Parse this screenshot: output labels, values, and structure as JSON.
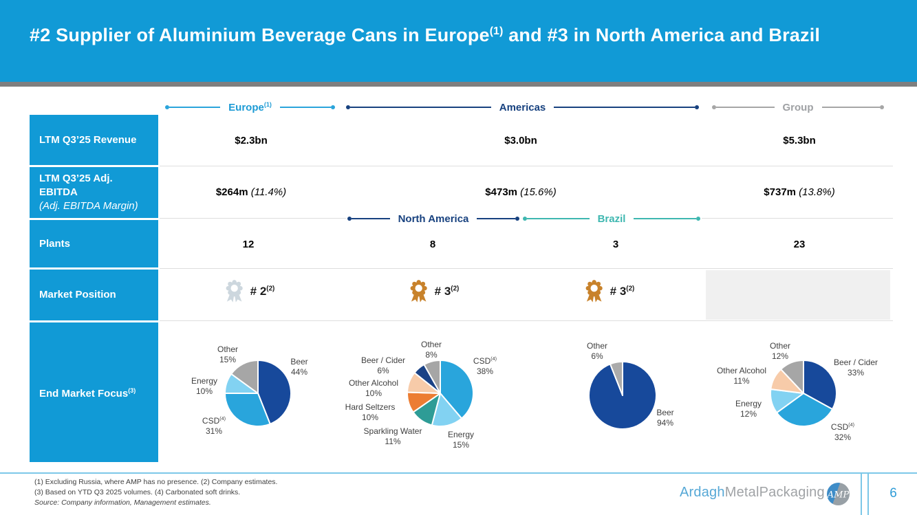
{
  "title": {
    "pre": "#2 Supplier of Aluminium Beverage Cans in Europe",
    "sup": "(1)",
    "post": " and #3 in North America and Brazil"
  },
  "palette": {
    "brand_cyan": "#119AD6",
    "navy": "#17417F",
    "teal": "#3EB7B0",
    "gray": "#A6A6A6",
    "pie_navy": "#17499B",
    "pie_blue": "#29A5DC",
    "pie_light_blue": "#82D2F2",
    "pie_teal": "#2E9C96",
    "pie_orange": "#EC7D33",
    "pie_peach": "#F7CBA9"
  },
  "brackets": {
    "europe": {
      "label": "Europe",
      "sup": "(1)"
    },
    "americas": {
      "label": "Americas"
    },
    "group": {
      "label": "Group"
    },
    "north_america": {
      "label": "North America"
    },
    "brazil": {
      "label": "Brazil"
    }
  },
  "rows": {
    "revenue": {
      "label": "LTM Q3’25 Revenue",
      "values": [
        "$2.3bn",
        "$3.0bn",
        "$5.3bn"
      ]
    },
    "ebitda": {
      "label": "LTM Q3’25 Adj. EBITDA",
      "sublabel": "(Adj. EBITDA Margin)",
      "values": [
        {
          "amount": "$264m",
          "margin": "(11.4%)"
        },
        {
          "amount": "$473m",
          "margin": "(15.6%)"
        },
        {
          "amount": "$737m",
          "margin": "(13.8%)"
        }
      ]
    },
    "plants": {
      "label": "Plants",
      "values": [
        "12",
        "8",
        "3",
        "23"
      ]
    },
    "market_position": {
      "label": "Market Position",
      "values": [
        {
          "rank": "# 2",
          "sup": "(2)",
          "medal": "silver",
          "medal_color": "#CDD7DE"
        },
        {
          "rank": "# 3",
          "sup": "(2)",
          "medal": "bronze",
          "medal_color": "#C8822B"
        },
        {
          "rank": "# 3",
          "sup": "(2)",
          "medal": "bronze",
          "medal_color": "#C8822B"
        }
      ]
    },
    "end_market": {
      "label": "End Market Focus",
      "sup": "(3)"
    }
  },
  "chart_data": [
    {
      "type": "pie",
      "region": "Europe",
      "slices": [
        {
          "label": "Beer",
          "value": 44,
          "pct": "44%",
          "color": "#17499B"
        },
        {
          "label": "CSD",
          "sup": "(4)",
          "value": 31,
          "pct": "31%",
          "color": "#29A5DC"
        },
        {
          "label": "Energy",
          "value": 10,
          "pct": "10%",
          "color": "#82D2F2"
        },
        {
          "label": "Other",
          "value": 15,
          "pct": "15%",
          "color": "#A6A6A6"
        }
      ]
    },
    {
      "type": "pie",
      "region": "North America",
      "slices": [
        {
          "label": "CSD",
          "sup": "(4)",
          "value": 38,
          "pct": "38%",
          "color": "#29A5DC"
        },
        {
          "label": "Energy",
          "value": 15,
          "pct": "15%",
          "color": "#82D2F2"
        },
        {
          "label": "Sparkling Water",
          "value": 11,
          "pct": "11%",
          "color": "#2E9C96"
        },
        {
          "label": "Hard Seltzers",
          "value": 10,
          "pct": "10%",
          "color": "#EC7D33"
        },
        {
          "label": "Other Alcohol",
          "value": 10,
          "pct": "10%",
          "color": "#F7CBA9"
        },
        {
          "label": "Beer / Cider",
          "value": 6,
          "pct": "6%",
          "color": "#1A4286"
        },
        {
          "label": "Other",
          "value": 8,
          "pct": "8%",
          "color": "#A6A6A6"
        }
      ]
    },
    {
      "type": "pie",
      "region": "Brazil",
      "slices": [
        {
          "label": "Beer",
          "value": 94,
          "pct": "94%",
          "color": "#17499B"
        },
        {
          "label": "Other",
          "value": 6,
          "pct": "6%",
          "color": "#ABABAB"
        }
      ]
    },
    {
      "type": "pie",
      "region": "Group",
      "slices": [
        {
          "label": "Beer / Cider",
          "value": 33,
          "pct": "33%",
          "color": "#17499B"
        },
        {
          "label": "CSD",
          "sup": "(4)",
          "value": 32,
          "pct": "32%",
          "color": "#29A5DC"
        },
        {
          "label": "Energy",
          "value": 12,
          "pct": "12%",
          "color": "#82D2F2"
        },
        {
          "label": "Other Alcohol",
          "value": 11,
          "pct": "11%",
          "color": "#F7CBA9"
        },
        {
          "label": "Other",
          "value": 12,
          "pct": "12%",
          "color": "#A6A6A6"
        }
      ]
    }
  ],
  "footnotes": {
    "lines": [
      "(1) Excluding Russia, where AMP has no presence. (2) Company estimates.",
      "(3) Based on YTD Q3 2025 volumes. (4) Carbonated soft drinks."
    ],
    "source": "Source: Company information, Management estimates."
  },
  "footer": {
    "logo_part1": "Ardagh",
    "logo_part2": "MetalPackaging",
    "emblem_text": "AMP",
    "page_number": "6"
  }
}
